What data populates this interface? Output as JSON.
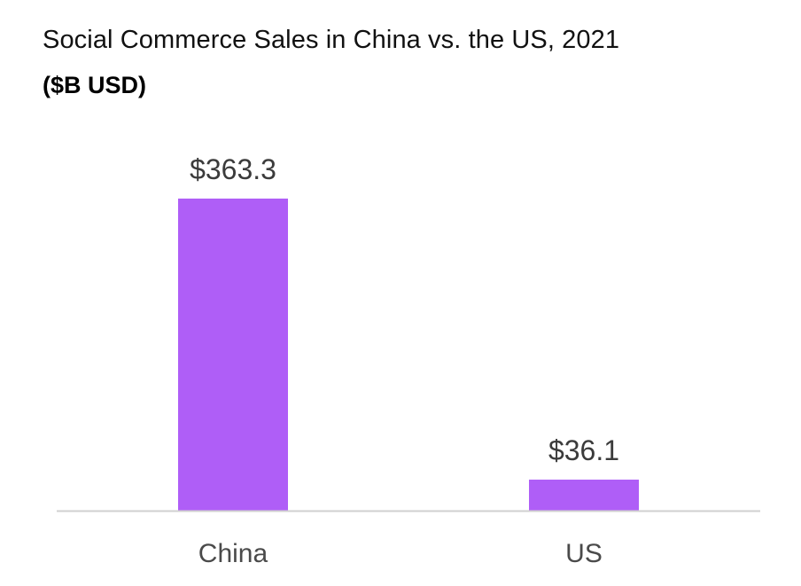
{
  "chart_data": {
    "type": "bar",
    "title": "Social Commerce Sales in China vs. the US, 2021",
    "subtitle": "($B USD)",
    "categories": [
      "China",
      "US"
    ],
    "values": [
      363.3,
      36.1
    ],
    "data_labels": [
      "$363.3",
      "$36.1"
    ],
    "xlabel": "",
    "ylabel": "",
    "ylim": [
      0,
      400
    ],
    "grid": false,
    "legend": "none",
    "colors": {
      "bar": "#AF5EF7",
      "axis": "#D0D0D0",
      "label": "#3B3B3B"
    }
  }
}
